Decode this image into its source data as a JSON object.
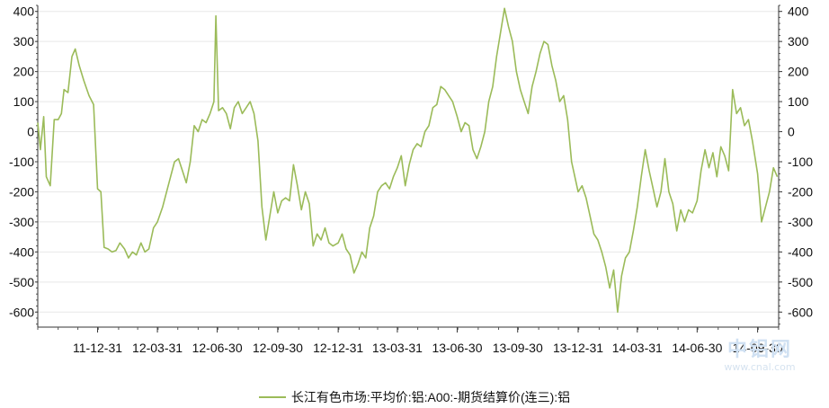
{
  "chart_data": {
    "type": "line",
    "title": "",
    "xlabel": "",
    "ylabel": "",
    "ylim": [
      -650,
      420
    ],
    "yticks": [
      400,
      300,
      200,
      100,
      0,
      -100,
      -200,
      -300,
      -400,
      -500,
      -600
    ],
    "xticks": [
      "11-12-31",
      "12-03-31",
      "12-06-30",
      "12-09-30",
      "12-12-31",
      "13-03-31",
      "13-06-30",
      "13-09-30",
      "13-12-31",
      "14-03-31",
      "14-06-30",
      "14-09-30"
    ],
    "x_start": "2011-10-01",
    "x_end": "2014-11-01",
    "grid": true,
    "legend_position": "bottom",
    "series": [
      {
        "name": "长江有色市场:平均价:铝:A00:-期货结算价(连三):铝",
        "color": "#9bbb59",
        "points": [
          [
            "2011-10-01",
            30
          ],
          [
            "2011-10-05",
            -60
          ],
          [
            "2011-10-10",
            50
          ],
          [
            "2011-10-14",
            -150
          ],
          [
            "2011-10-20",
            -180
          ],
          [
            "2011-10-26",
            40
          ],
          [
            "2011-11-01",
            40
          ],
          [
            "2011-11-06",
            60
          ],
          [
            "2011-11-10",
            140
          ],
          [
            "2011-11-16",
            130
          ],
          [
            "2011-11-22",
            250
          ],
          [
            "2011-11-27",
            275
          ],
          [
            "2011-12-03",
            220
          ],
          [
            "2011-12-10",
            170
          ],
          [
            "2011-12-18",
            120
          ],
          [
            "2011-12-25",
            90
          ],
          [
            "2011-12-31",
            -190
          ],
          [
            "2012-01-05",
            -200
          ],
          [
            "2012-01-10",
            -385
          ],
          [
            "2012-01-16",
            -390
          ],
          [
            "2012-01-22",
            -400
          ],
          [
            "2012-01-28",
            -395
          ],
          [
            "2012-02-03",
            -370
          ],
          [
            "2012-02-10",
            -390
          ],
          [
            "2012-02-16",
            -420
          ],
          [
            "2012-02-22",
            -400
          ],
          [
            "2012-02-28",
            -410
          ],
          [
            "2012-03-06",
            -370
          ],
          [
            "2012-03-12",
            -400
          ],
          [
            "2012-03-18",
            -390
          ],
          [
            "2012-03-25",
            -320
          ],
          [
            "2012-03-31",
            -300
          ],
          [
            "2012-04-08",
            -250
          ],
          [
            "2012-04-14",
            -200
          ],
          [
            "2012-04-20",
            -150
          ],
          [
            "2012-04-26",
            -100
          ],
          [
            "2012-05-02",
            -90
          ],
          [
            "2012-05-08",
            -130
          ],
          [
            "2012-05-14",
            -170
          ],
          [
            "2012-05-20",
            -100
          ],
          [
            "2012-05-26",
            20
          ],
          [
            "2012-06-01",
            0
          ],
          [
            "2012-06-07",
            40
          ],
          [
            "2012-06-13",
            30
          ],
          [
            "2012-06-19",
            60
          ],
          [
            "2012-06-25",
            100
          ],
          [
            "2012-06-28",
            385
          ],
          [
            "2012-07-02",
            70
          ],
          [
            "2012-07-08",
            80
          ],
          [
            "2012-07-14",
            60
          ],
          [
            "2012-07-20",
            10
          ],
          [
            "2012-07-26",
            80
          ],
          [
            "2012-08-01",
            100
          ],
          [
            "2012-08-07",
            60
          ],
          [
            "2012-08-13",
            80
          ],
          [
            "2012-08-19",
            100
          ],
          [
            "2012-08-25",
            60
          ],
          [
            "2012-08-31",
            -30
          ],
          [
            "2012-09-06",
            -250
          ],
          [
            "2012-09-12",
            -360
          ],
          [
            "2012-09-18",
            -280
          ],
          [
            "2012-09-24",
            -200
          ],
          [
            "2012-09-30",
            -270
          ],
          [
            "2012-10-06",
            -230
          ],
          [
            "2012-10-12",
            -220
          ],
          [
            "2012-10-18",
            -230
          ],
          [
            "2012-10-24",
            -110
          ],
          [
            "2012-10-30",
            -180
          ],
          [
            "2012-11-05",
            -260
          ],
          [
            "2012-11-11",
            -200
          ],
          [
            "2012-11-17",
            -240
          ],
          [
            "2012-11-23",
            -380
          ],
          [
            "2012-11-29",
            -340
          ],
          [
            "2012-12-05",
            -360
          ],
          [
            "2012-12-11",
            -320
          ],
          [
            "2012-12-17",
            -370
          ],
          [
            "2012-12-23",
            -380
          ],
          [
            "2012-12-31",
            -370
          ],
          [
            "2013-01-06",
            -340
          ],
          [
            "2013-01-12",
            -390
          ],
          [
            "2013-01-18",
            -410
          ],
          [
            "2013-01-24",
            -470
          ],
          [
            "2013-01-30",
            -440
          ],
          [
            "2013-02-05",
            -400
          ],
          [
            "2013-02-11",
            -420
          ],
          [
            "2013-02-17",
            -320
          ],
          [
            "2013-02-23",
            -280
          ],
          [
            "2013-03-01",
            -200
          ],
          [
            "2013-03-07",
            -180
          ],
          [
            "2013-03-13",
            -170
          ],
          [
            "2013-03-19",
            -190
          ],
          [
            "2013-03-25",
            -150
          ],
          [
            "2013-03-31",
            -120
          ],
          [
            "2013-04-06",
            -80
          ],
          [
            "2013-04-12",
            -180
          ],
          [
            "2013-04-18",
            -110
          ],
          [
            "2013-04-24",
            -60
          ],
          [
            "2013-04-30",
            -40
          ],
          [
            "2013-05-06",
            -50
          ],
          [
            "2013-05-12",
            0
          ],
          [
            "2013-05-18",
            20
          ],
          [
            "2013-05-24",
            80
          ],
          [
            "2013-05-30",
            90
          ],
          [
            "2013-06-05",
            150
          ],
          [
            "2013-06-11",
            140
          ],
          [
            "2013-06-17",
            120
          ],
          [
            "2013-06-23",
            100
          ],
          [
            "2013-06-30",
            50
          ],
          [
            "2013-07-06",
            0
          ],
          [
            "2013-07-12",
            30
          ],
          [
            "2013-07-18",
            20
          ],
          [
            "2013-07-24",
            -60
          ],
          [
            "2013-07-30",
            -90
          ],
          [
            "2013-08-05",
            -50
          ],
          [
            "2013-08-11",
            0
          ],
          [
            "2013-08-17",
            100
          ],
          [
            "2013-08-23",
            150
          ],
          [
            "2013-08-29",
            250
          ],
          [
            "2013-09-04",
            330
          ],
          [
            "2013-09-10",
            410
          ],
          [
            "2013-09-16",
            350
          ],
          [
            "2013-09-22",
            300
          ],
          [
            "2013-09-28",
            200
          ],
          [
            "2013-10-04",
            140
          ],
          [
            "2013-10-10",
            100
          ],
          [
            "2013-10-16",
            60
          ],
          [
            "2013-10-22",
            150
          ],
          [
            "2013-10-28",
            200
          ],
          [
            "2013-11-03",
            260
          ],
          [
            "2013-11-09",
            300
          ],
          [
            "2013-11-15",
            290
          ],
          [
            "2013-11-21",
            220
          ],
          [
            "2013-11-27",
            170
          ],
          [
            "2013-12-03",
            100
          ],
          [
            "2013-12-09",
            120
          ],
          [
            "2013-12-15",
            40
          ],
          [
            "2013-12-21",
            -100
          ],
          [
            "2013-12-31",
            -200
          ],
          [
            "2014-01-06",
            -180
          ],
          [
            "2014-01-12",
            -220
          ],
          [
            "2014-01-18",
            -280
          ],
          [
            "2014-01-24",
            -340
          ],
          [
            "2014-01-30",
            -360
          ],
          [
            "2014-02-05",
            -400
          ],
          [
            "2014-02-11",
            -450
          ],
          [
            "2014-02-17",
            -520
          ],
          [
            "2014-02-23",
            -460
          ],
          [
            "2014-03-01",
            -600
          ],
          [
            "2014-03-07",
            -480
          ],
          [
            "2014-03-13",
            -420
          ],
          [
            "2014-03-19",
            -400
          ],
          [
            "2014-03-25",
            -330
          ],
          [
            "2014-03-31",
            -250
          ],
          [
            "2014-04-06",
            -150
          ],
          [
            "2014-04-12",
            -60
          ],
          [
            "2014-04-18",
            -130
          ],
          [
            "2014-04-24",
            -190
          ],
          [
            "2014-04-30",
            -250
          ],
          [
            "2014-05-06",
            -200
          ],
          [
            "2014-05-12",
            -90
          ],
          [
            "2014-05-18",
            -200
          ],
          [
            "2014-05-24",
            -240
          ],
          [
            "2014-05-30",
            -330
          ],
          [
            "2014-06-05",
            -260
          ],
          [
            "2014-06-11",
            -300
          ],
          [
            "2014-06-17",
            -260
          ],
          [
            "2014-06-23",
            -270
          ],
          [
            "2014-06-30",
            -230
          ],
          [
            "2014-07-06",
            -130
          ],
          [
            "2014-07-12",
            -60
          ],
          [
            "2014-07-18",
            -120
          ],
          [
            "2014-07-24",
            -70
          ],
          [
            "2014-07-30",
            -150
          ],
          [
            "2014-08-05",
            -50
          ],
          [
            "2014-08-11",
            -80
          ],
          [
            "2014-08-17",
            -130
          ],
          [
            "2014-08-23",
            140
          ],
          [
            "2014-08-29",
            60
          ],
          [
            "2014-09-04",
            80
          ],
          [
            "2014-09-10",
            20
          ],
          [
            "2014-09-16",
            40
          ],
          [
            "2014-09-22",
            -30
          ],
          [
            "2014-09-30",
            -140
          ],
          [
            "2014-10-06",
            -300
          ],
          [
            "2014-10-12",
            -250
          ],
          [
            "2014-10-18",
            -200
          ],
          [
            "2014-10-24",
            -120
          ],
          [
            "2014-10-30",
            -150
          ]
        ]
      }
    ]
  },
  "legend": {
    "label": "长江有色市场:平均价:铝:A00:-期货结算价(连三):铝",
    "color": "#9bbb59"
  },
  "watermark": {
    "main": "中铝网",
    "sub": "www.cnal.com"
  }
}
